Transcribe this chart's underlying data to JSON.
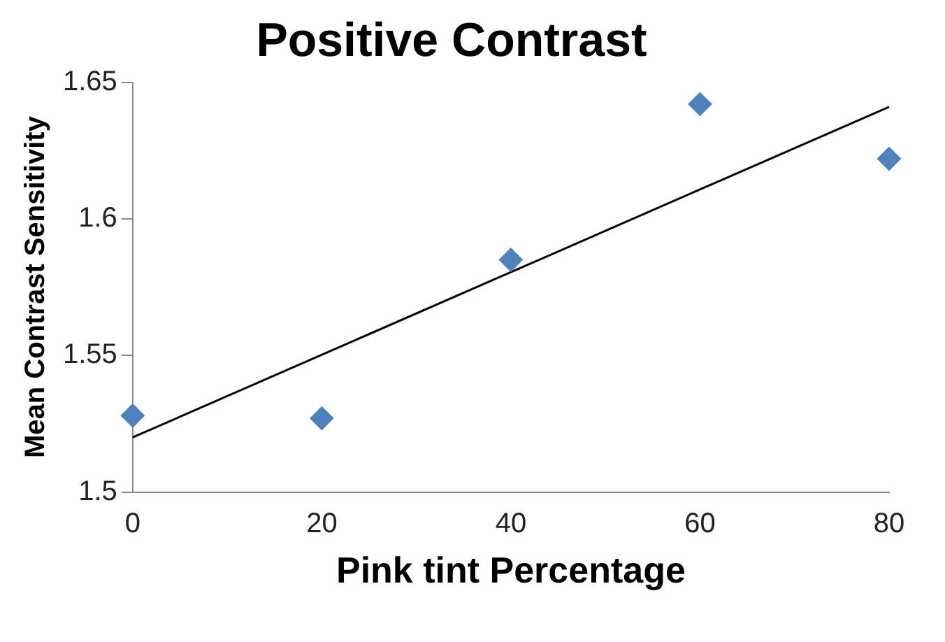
{
  "chart_data": {
    "type": "scatter",
    "title": "Positive Contrast",
    "xlabel": "Pink tint Percentage",
    "ylabel": "Mean Contrast Sensitivity",
    "series": [
      {
        "type": "scatter",
        "color": "#4f81bd",
        "marker": "diamond",
        "x": [
          0,
          20,
          40,
          60,
          80
        ],
        "values": [
          1.528,
          1.527,
          1.585,
          1.642,
          1.622
        ]
      },
      {
        "type": "line",
        "color": "#000000",
        "marker": "none",
        "x": [
          0,
          80
        ],
        "values": [
          1.52,
          1.641
        ]
      }
    ],
    "xlim": [
      0,
      80
    ],
    "xticks": [
      0,
      20,
      40,
      60,
      80
    ],
    "ylim": [
      1.5,
      1.65
    ],
    "yticks": [
      1.5,
      1.55,
      1.6,
      1.65
    ],
    "grid": false,
    "legend": false
  }
}
